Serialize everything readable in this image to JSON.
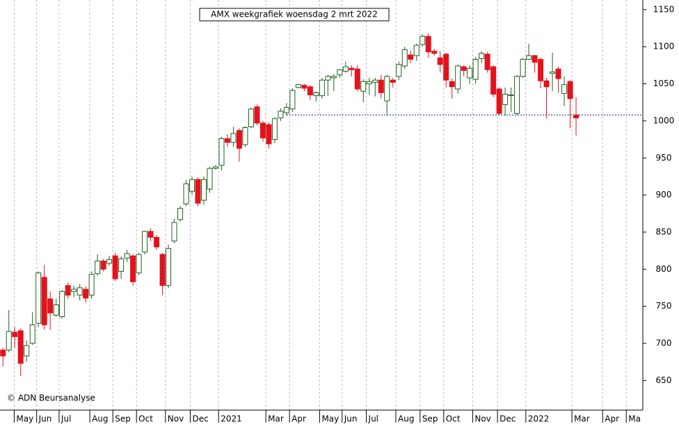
{
  "chart_data": {
    "type": "candlestick",
    "title": "AMX weekgrafiek woensdag 2 mrt 2022",
    "credit": "© ADN Beursanalyse",
    "up_color": "#ffffff",
    "up_stroke": "#1f5f1f",
    "down_color": "#e3121c",
    "down_stroke": "#e3121c",
    "grid": true,
    "ylim": [
      610,
      1163
    ],
    "yticks": [
      650,
      700,
      750,
      800,
      850,
      900,
      950,
      1000,
      1050,
      1100,
      1150
    ],
    "xlim": [
      -0.5,
      108.3
    ],
    "xticks": [
      {
        "value": 1.9,
        "label": "May"
      },
      {
        "value": 5.7,
        "label": "Jun"
      },
      {
        "value": 9.5,
        "label": "Jul"
      },
      {
        "value": 14.7,
        "label": "Aug"
      },
      {
        "value": 18.6,
        "label": "Sep"
      },
      {
        "value": 22.6,
        "label": "Oct"
      },
      {
        "value": 27.5,
        "label": "Nov"
      },
      {
        "value": 31.7,
        "label": "Dec"
      },
      {
        "value": 36.5,
        "label": "2021"
      },
      {
        "value": 44.5,
        "label": "Mar"
      },
      {
        "value": 48.5,
        "label": "Apr"
      },
      {
        "value": 53.6,
        "label": "May"
      },
      {
        "value": 57.4,
        "label": "Jun"
      },
      {
        "value": 61.5,
        "label": "Jul"
      },
      {
        "value": 66.5,
        "label": "Aug"
      },
      {
        "value": 70.6,
        "label": "Sep"
      },
      {
        "value": 74.6,
        "label": "Oct"
      },
      {
        "value": 79.5,
        "label": "Nov"
      },
      {
        "value": 83.7,
        "label": "Dec"
      },
      {
        "value": 88.5,
        "label": "2022"
      },
      {
        "value": 96.3,
        "label": "Mar"
      },
      {
        "value": 101.5,
        "label": "Apr"
      },
      {
        "value": 105.5,
        "label": "Ma"
      }
    ],
    "support_line": {
      "value": 1008,
      "x_start": 48,
      "color": "#1a1a8c"
    },
    "open": [
      691,
      691,
      715,
      717,
      683,
      700,
      727,
      789,
      760,
      738,
      736,
      778,
      770,
      765,
      773,
      765,
      794,
      811,
      808,
      818,
      797,
      815,
      818,
      795,
      823,
      851,
      843,
      820,
      778,
      838,
      867,
      888,
      905,
      921,
      893,
      908,
      936,
      940,
      976,
      971,
      987,
      968,
      992,
      1019,
      997,
      995,
      975,
      1004,
      1011,
      1016,
      1045,
      1048,
      1046,
      1034,
      1034,
      1055,
      1058,
      1062,
      1067,
      1071,
      1070,
      1040,
      1050,
      1052,
      1055,
      1027,
      1055,
      1060,
      1074,
      1089,
      1088,
      1103,
      1114,
      1094,
      1085,
      1090,
      1053,
      1043,
      1073,
      1058,
      1056,
      1084,
      1090,
      1073,
      1043,
      1022,
      1034,
      1010,
      1060,
      1083,
      1088,
      1083,
      1054,
      1064,
      1070,
      1037,
      1053,
      1008
    ],
    "high": [
      694,
      745,
      722,
      720,
      704,
      742,
      797,
      806,
      770,
      760,
      772,
      782,
      778,
      780,
      777,
      797,
      820,
      814,
      818,
      822,
      817,
      826,
      820,
      822,
      852,
      855,
      846,
      822,
      833,
      868,
      885,
      920,
      925,
      924,
      925,
      938,
      940,
      978,
      982,
      992,
      990,
      993,
      1018,
      1022,
      1000,
      998,
      1005,
      1017,
      1024,
      1044,
      1050,
      1050,
      1048,
      1040,
      1058,
      1062,
      1063,
      1070,
      1080,
      1075,
      1075,
      1056,
      1058,
      1058,
      1062,
      1062,
      1058,
      1080,
      1100,
      1095,
      1104,
      1117,
      1118,
      1097,
      1094,
      1092,
      1057,
      1076,
      1075,
      1075,
      1086,
      1094,
      1093,
      1075,
      1045,
      1045,
      1045,
      1062,
      1085,
      1104,
      1089,
      1085,
      1058,
      1092,
      1073,
      1060,
      1055,
      1032
    ],
    "low": [
      669,
      688,
      694,
      656,
      675,
      698,
      722,
      718,
      718,
      736,
      733,
      760,
      762,
      758,
      755,
      760,
      791,
      797,
      805,
      784,
      787,
      810,
      778,
      792,
      820,
      838,
      826,
      765,
      775,
      835,
      864,
      885,
      900,
      885,
      887,
      903,
      934,
      933,
      965,
      965,
      945,
      965,
      990,
      994,
      972,
      963,
      970,
      1000,
      1007,
      1012,
      1044,
      1040,
      1028,
      1026,
      1030,
      1034,
      1040,
      1058,
      1065,
      1060,
      1040,
      1025,
      1035,
      1033,
      1030,
      1007,
      1045,
      1055,
      1070,
      1078,
      1081,
      1100,
      1085,
      1088,
      1065,
      1045,
      1030,
      1037,
      1060,
      1050,
      1050,
      1078,
      1065,
      1032,
      1008,
      1007,
      1012,
      1008,
      1058,
      1082,
      1065,
      1044,
      1003,
      1040,
      1038,
      1020,
      990,
      980
    ],
    "close": [
      683,
      716,
      709,
      673,
      697,
      725,
      795,
      725,
      741,
      752,
      770,
      765,
      773,
      775,
      761,
      793,
      811,
      800,
      813,
      787,
      814,
      821,
      783,
      820,
      851,
      843,
      830,
      778,
      828,
      863,
      882,
      915,
      921,
      889,
      921,
      936,
      938,
      976,
      971,
      983,
      963,
      991,
      1016,
      997,
      977,
      969,
      1003,
      1013,
      1018,
      1041,
      1049,
      1044,
      1035,
      1038,
      1055,
      1060,
      1060,
      1069,
      1073,
      1069,
      1043,
      1053,
      1053,
      1055,
      1038,
      1060,
      1052,
      1076,
      1096,
      1083,
      1102,
      1114,
      1093,
      1091,
      1076,
      1055,
      1046,
      1074,
      1068,
      1071,
      1083,
      1091,
      1069,
      1036,
      1010,
      1036,
      1035,
      1060,
      1083,
      1088,
      1079,
      1054,
      1046,
      1066,
      1057,
      1049,
      1030,
      1004
    ]
  }
}
